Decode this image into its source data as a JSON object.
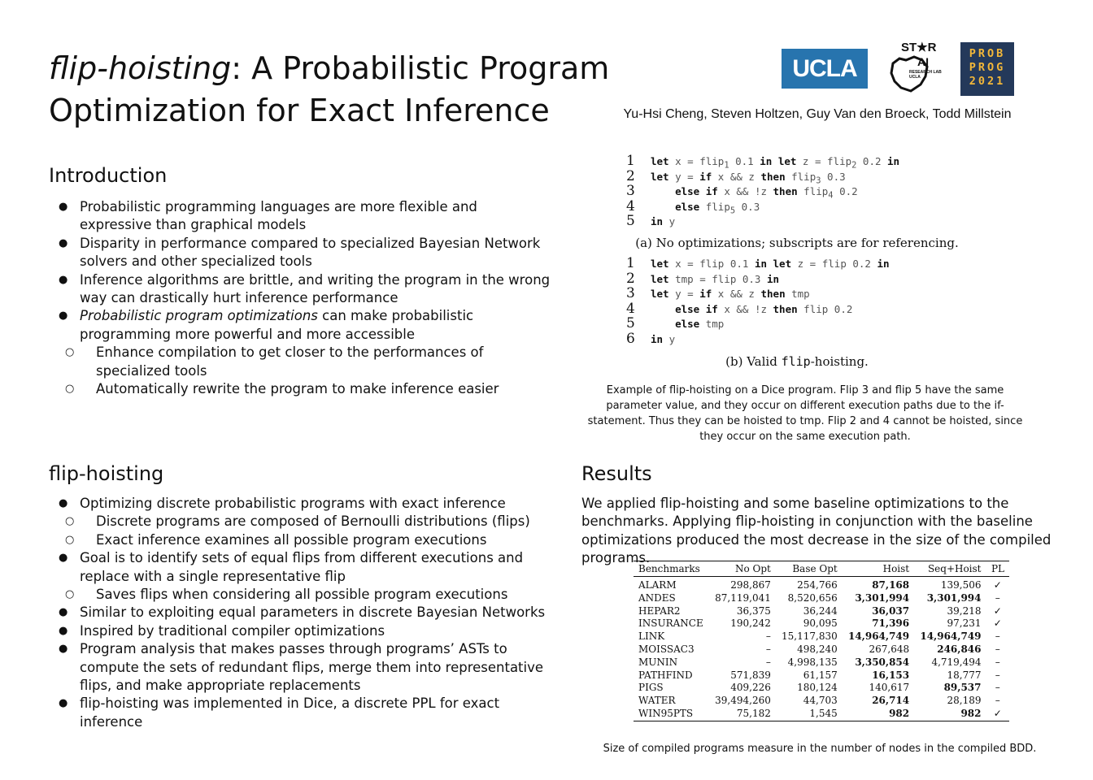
{
  "title": {
    "italic_part": "flip-hoisting",
    "rest": ": A Probabilistic Program Optimization for Exact Inference"
  },
  "authors": "Yu-Hsi Cheng, Steven Holtzen, Guy Van den Broeck, Todd Millstein",
  "logos": {
    "ucla": "UCLA",
    "starai_top": "ST★R",
    "starai_mid": "AI",
    "starai_small": "RESEARCH LAB UCLA",
    "probprog": [
      "PROB",
      "PROG",
      "2021"
    ]
  },
  "intro": {
    "heading": "Introduction",
    "bullets": [
      "Probabilistic programming languages are more flexible and expressive than graphical models",
      "Disparity in performance compared to specialized Bayesian Network solvers and other specialized tools",
      "Inference algorithms are brittle, and writing the program in the wrong way can drastically hurt inference performance"
    ],
    "bullet4_italic": "Probabilistic program optimizations",
    "bullet4_rest": " can make probabilistic programming more powerful and more accessible",
    "sub_bullets": [
      "Enhance compilation to get closer to the performances of specialized tools",
      "Automatically rewrite the program to make inference easier"
    ]
  },
  "flip": {
    "heading": "flip-hoisting",
    "b1": "Optimizing discrete probabilistic programs with exact inference",
    "b1_subs": [
      "Discrete programs are composed of Bernoulli distributions (flips)",
      "Exact inference examines all possible program executions"
    ],
    "b2": "Goal is to identify sets of equal flips from different executions and replace with a single representative flip",
    "b2_subs": [
      "Saves flips when considering all possible program executions"
    ],
    "b3": "Similar to exploiting equal parameters in discrete Bayesian Networks",
    "b4": "Inspired by traditional compiler optimizations",
    "b5": "Program analysis that makes passes through programs’ ASTs to compute the sets of redundant flips, merge them into representative flips, and make appropriate replacements",
    "b6": "flip-hoisting was implemented in Dice, a discrete PPL for exact inference"
  },
  "figure": {
    "caption_a": "(a) No optimizations; subscripts are for referencing.",
    "caption_b_pre": "(b) Valid ",
    "caption_b_code": "flip",
    "caption_b_post": "-hoisting.",
    "caption": "Example of flip-hoisting on a Dice program. Flip 3 and flip 5 have the same parameter value, and they occur on different execution paths due to the if-statement. Thus they can be hoisted to tmp. Flip 2 and 4 cannot be hoisted, since they occur on the same execution path."
  },
  "results": {
    "heading": "Results",
    "paragraph": "We applied flip-hoisting and some baseline optimizations to the benchmarks. Applying flip-hoisting in conjunction with the baseline optimizations produced the most decrease in the size of the compiled programs.",
    "caption": "Size of compiled programs measure in the number of nodes in the compiled BDD.",
    "columns": [
      "Benchmarks",
      "No Opt",
      "Base Opt",
      "Hoist",
      "Seq+Hoist",
      "PL"
    ],
    "rows": [
      [
        "ALARM",
        "298,867",
        "254,766",
        "87,168",
        "139,506",
        "✓"
      ],
      [
        "ANDES",
        "87,119,041",
        "8,520,656",
        "3,301,994",
        "3,301,994",
        "–"
      ],
      [
        "HEPAR2",
        "36,375",
        "36,244",
        "36,037",
        "39,218",
        "✓"
      ],
      [
        "INSURANCE",
        "190,242",
        "90,095",
        "71,396",
        "97,231",
        "✓"
      ],
      [
        "LINK",
        "–",
        "15,117,830",
        "14,964,749",
        "14,964,749",
        "–"
      ],
      [
        "MOISSAC3",
        "–",
        "498,240",
        "267,648",
        "246,846",
        "–"
      ],
      [
        "MUNIN",
        "–",
        "4,998,135",
        "3,350,854",
        "4,719,494",
        "–"
      ],
      [
        "PATHFIND",
        "571,839",
        "61,157",
        "16,153",
        "18,777",
        "–"
      ],
      [
        "PIGS",
        "409,226",
        "180,124",
        "140,617",
        "89,537",
        "–"
      ],
      [
        "WATER",
        "39,494,260",
        "44,703",
        "26,714",
        "28,189",
        "–"
      ],
      [
        "WIN95PTS",
        "75,182",
        "1,545",
        "982",
        "982",
        "✓"
      ]
    ]
  },
  "colors": {
    "ucla": "#2774AE",
    "probprog_bg": "#24395A",
    "probprog_fg": "#F2B739"
  }
}
